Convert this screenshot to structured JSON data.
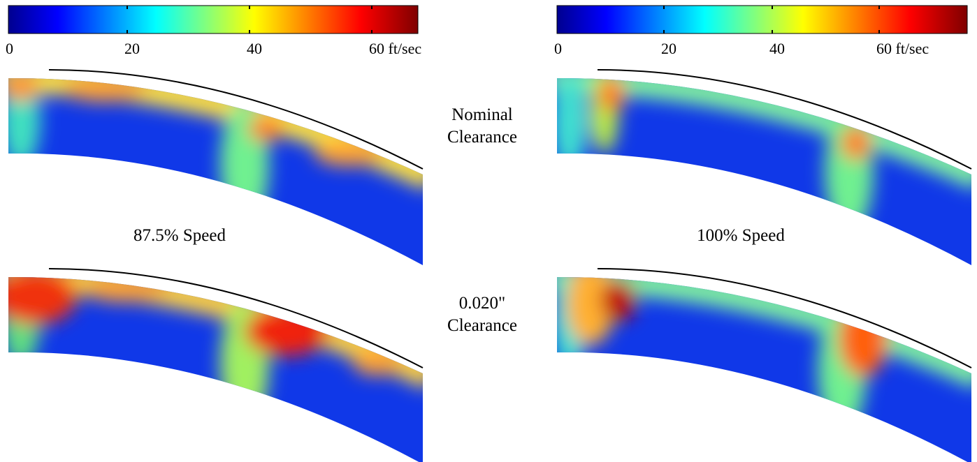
{
  "colorbars": [
    {
      "ticks": [
        "0",
        "20",
        "40",
        "60 ft/sec"
      ]
    },
    {
      "ticks": [
        "0",
        "20",
        "40",
        "60 ft/sec"
      ]
    }
  ],
  "row_labels": [
    {
      "lines": [
        "Nominal",
        "Clearance"
      ]
    },
    {
      "lines": [
        "0.020\"",
        "Clearance"
      ]
    }
  ],
  "column_labels": [
    "87.5% Speed",
    "100% Speed"
  ]
}
